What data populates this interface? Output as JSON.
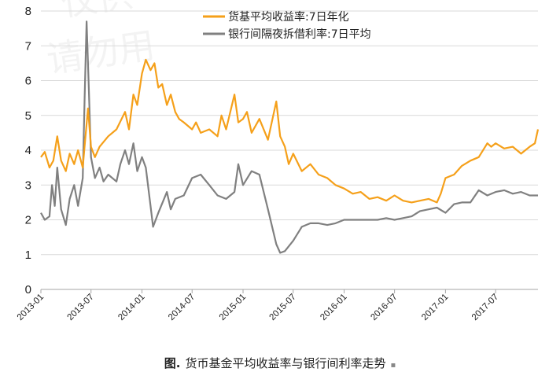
{
  "watermark": {
    "line1": "仅供",
    "line2": "请勿用"
  },
  "caption": {
    "prefix": "图.",
    "text": "货币基金平均收益率与银行间利率走势",
    "mark": "▪"
  },
  "chart_data": {
    "type": "line",
    "title": "",
    "xlabel": "",
    "ylabel": "",
    "ylim": [
      0,
      8
    ],
    "yticks": [
      "0",
      "1",
      "2",
      "3",
      "4",
      "5",
      "6",
      "7",
      "8"
    ],
    "xticks": [
      "2013-01",
      "2013-07",
      "2014-01",
      "2014-07",
      "2015-01",
      "2015-07",
      "2016-01",
      "2016-07",
      "2017-01",
      "2017-07"
    ],
    "xlim": [
      "2013-01",
      "2017-12"
    ],
    "grid": "horizontal",
    "legend": "top-center",
    "series": [
      {
        "name": "货基平均收益率:7日年化",
        "color": "#f5a01a",
        "points": [
          [
            "2013-01",
            3.8
          ],
          [
            "2013-01-15",
            3.95
          ],
          [
            "2013-02",
            3.5
          ],
          [
            "2013-02-15",
            3.7
          ],
          [
            "2013-03",
            4.4
          ],
          [
            "2013-03-15",
            3.7
          ],
          [
            "2013-04",
            3.4
          ],
          [
            "2013-04-15",
            3.9
          ],
          [
            "2013-05",
            3.6
          ],
          [
            "2013-05-15",
            4.0
          ],
          [
            "2013-06",
            3.5
          ],
          [
            "2013-06-10",
            4.3
          ],
          [
            "2013-06-20",
            5.2
          ],
          [
            "2013-07",
            4.1
          ],
          [
            "2013-07-15",
            3.8
          ],
          [
            "2013-08",
            4.1
          ],
          [
            "2013-09",
            4.4
          ],
          [
            "2013-10",
            4.6
          ],
          [
            "2013-11",
            5.1
          ],
          [
            "2013-11-15",
            4.6
          ],
          [
            "2013-12",
            5.6
          ],
          [
            "2013-12-15",
            5.3
          ],
          [
            "2014-01",
            6.2
          ],
          [
            "2014-01-15",
            6.6
          ],
          [
            "2014-02",
            6.3
          ],
          [
            "2014-02-15",
            6.5
          ],
          [
            "2014-03",
            5.8
          ],
          [
            "2014-03-15",
            5.9
          ],
          [
            "2014-04",
            5.3
          ],
          [
            "2014-04-15",
            5.6
          ],
          [
            "2014-05",
            5.1
          ],
          [
            "2014-05-15",
            4.9
          ],
          [
            "2014-06",
            4.8
          ],
          [
            "2014-07",
            4.6
          ],
          [
            "2014-07-15",
            4.8
          ],
          [
            "2014-08",
            4.5
          ],
          [
            "2014-09",
            4.6
          ],
          [
            "2014-10",
            4.4
          ],
          [
            "2014-10-15",
            5.0
          ],
          [
            "2014-11",
            4.6
          ],
          [
            "2014-12",
            5.6
          ],
          [
            "2014-12-15",
            4.8
          ],
          [
            "2015-01",
            4.9
          ],
          [
            "2015-01-15",
            5.1
          ],
          [
            "2015-02",
            4.5
          ],
          [
            "2015-03",
            4.9
          ],
          [
            "2015-04",
            4.3
          ],
          [
            "2015-05",
            5.4
          ],
          [
            "2015-05-15",
            4.4
          ],
          [
            "2015-06",
            4.1
          ],
          [
            "2015-06-15",
            3.6
          ],
          [
            "2015-07",
            3.9
          ],
          [
            "2015-08",
            3.4
          ],
          [
            "2015-09",
            3.6
          ],
          [
            "2015-10",
            3.3
          ],
          [
            "2015-11",
            3.2
          ],
          [
            "2015-12",
            3.0
          ],
          [
            "2016-01",
            2.9
          ],
          [
            "2016-02",
            2.75
          ],
          [
            "2016-03",
            2.8
          ],
          [
            "2016-04",
            2.6
          ],
          [
            "2016-05",
            2.65
          ],
          [
            "2016-06",
            2.55
          ],
          [
            "2016-07",
            2.7
          ],
          [
            "2016-08",
            2.55
          ],
          [
            "2016-09",
            2.5
          ],
          [
            "2016-10",
            2.55
          ],
          [
            "2016-11",
            2.6
          ],
          [
            "2016-12",
            2.5
          ],
          [
            "2016-12-15",
            2.75
          ],
          [
            "2017-01",
            3.2
          ],
          [
            "2017-02",
            3.3
          ],
          [
            "2017-03",
            3.55
          ],
          [
            "2017-04",
            3.7
          ],
          [
            "2017-05",
            3.8
          ],
          [
            "2017-06",
            4.2
          ],
          [
            "2017-06-15",
            4.1
          ],
          [
            "2017-07",
            4.2
          ],
          [
            "2017-08",
            4.05
          ],
          [
            "2017-09",
            4.1
          ],
          [
            "2017-10",
            3.9
          ],
          [
            "2017-11",
            4.1
          ],
          [
            "2017-11-20",
            4.2
          ],
          [
            "2017-12",
            4.6
          ]
        ]
      },
      {
        "name": "银行间隔夜拆借利率:7日平均",
        "color": "#808080",
        "points": [
          [
            "2013-01",
            2.2
          ],
          [
            "2013-01-15",
            2.0
          ],
          [
            "2013-02",
            2.1
          ],
          [
            "2013-02-10",
            3.0
          ],
          [
            "2013-02-20",
            2.4
          ],
          [
            "2013-03",
            3.5
          ],
          [
            "2013-03-15",
            2.3
          ],
          [
            "2013-04",
            1.85
          ],
          [
            "2013-04-15",
            2.6
          ],
          [
            "2013-05",
            3.0
          ],
          [
            "2013-05-15",
            2.4
          ],
          [
            "2013-06",
            3.2
          ],
          [
            "2013-06-08",
            5.5
          ],
          [
            "2013-06-15",
            7.7
          ],
          [
            "2013-06-22",
            6.0
          ],
          [
            "2013-07",
            3.8
          ],
          [
            "2013-07-15",
            3.2
          ],
          [
            "2013-08",
            3.5
          ],
          [
            "2013-08-15",
            3.1
          ],
          [
            "2013-09",
            3.3
          ],
          [
            "2013-10",
            3.1
          ],
          [
            "2013-10-15",
            3.6
          ],
          [
            "2013-11",
            4.0
          ],
          [
            "2013-11-15",
            3.6
          ],
          [
            "2013-12",
            4.2
          ],
          [
            "2013-12-15",
            3.4
          ],
          [
            "2014-01",
            3.8
          ],
          [
            "2014-01-15",
            3.5
          ],
          [
            "2014-02",
            2.4
          ],
          [
            "2014-02-10",
            1.8
          ],
          [
            "2014-03",
            2.2
          ],
          [
            "2014-04",
            2.8
          ],
          [
            "2014-04-15",
            2.3
          ],
          [
            "2014-05",
            2.6
          ],
          [
            "2014-06",
            2.7
          ],
          [
            "2014-07",
            3.2
          ],
          [
            "2014-08",
            3.3
          ],
          [
            "2014-09",
            3.0
          ],
          [
            "2014-10",
            2.7
          ],
          [
            "2014-11",
            2.6
          ],
          [
            "2014-12",
            2.8
          ],
          [
            "2014-12-15",
            3.6
          ],
          [
            "2015-01",
            3.0
          ],
          [
            "2015-02",
            3.4
          ],
          [
            "2015-03",
            3.3
          ],
          [
            "2015-04",
            2.3
          ],
          [
            "2015-05",
            1.3
          ],
          [
            "2015-05-15",
            1.05
          ],
          [
            "2015-06",
            1.1
          ],
          [
            "2015-07",
            1.4
          ],
          [
            "2015-08",
            1.8
          ],
          [
            "2015-09",
            1.9
          ],
          [
            "2015-10",
            1.9
          ],
          [
            "2015-11",
            1.85
          ],
          [
            "2015-12",
            1.9
          ],
          [
            "2016-01",
            2.0
          ],
          [
            "2016-02",
            2.0
          ],
          [
            "2016-03",
            2.0
          ],
          [
            "2016-04",
            2.0
          ],
          [
            "2016-05",
            2.0
          ],
          [
            "2016-06",
            2.05
          ],
          [
            "2016-07",
            2.0
          ],
          [
            "2016-08",
            2.05
          ],
          [
            "2016-09",
            2.1
          ],
          [
            "2016-10",
            2.25
          ],
          [
            "2016-11",
            2.3
          ],
          [
            "2016-12",
            2.35
          ],
          [
            "2017-01",
            2.2
          ],
          [
            "2017-02",
            2.45
          ],
          [
            "2017-03",
            2.5
          ],
          [
            "2017-04",
            2.5
          ],
          [
            "2017-05",
            2.85
          ],
          [
            "2017-06",
            2.7
          ],
          [
            "2017-07",
            2.8
          ],
          [
            "2017-08",
            2.85
          ],
          [
            "2017-09",
            2.75
          ],
          [
            "2017-10",
            2.8
          ],
          [
            "2017-11",
            2.7
          ],
          [
            "2017-12",
            2.7
          ]
        ]
      }
    ]
  }
}
